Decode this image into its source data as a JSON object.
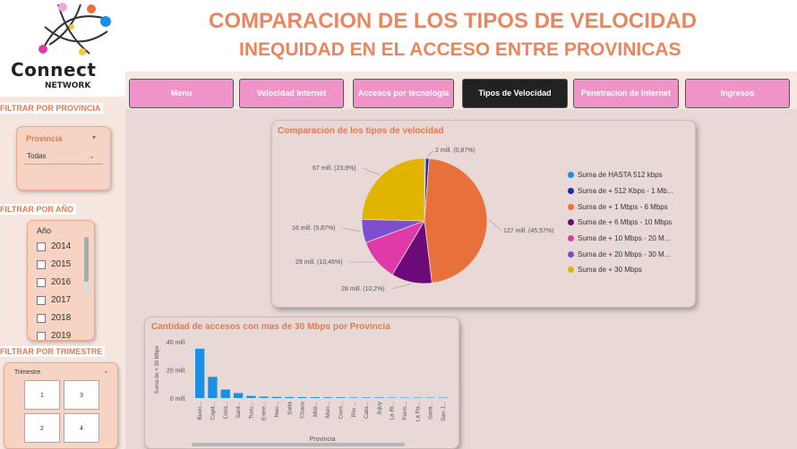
{
  "header": {
    "title_line1": "COMPARACION DE LOS TIPOS DE VELOCIDAD",
    "title_line2": "INEQUIDAD EN EL ACCESO ENTRE PROVINICAS"
  },
  "logo": {
    "word": "Connect",
    "sub": "NETWORK"
  },
  "nav": {
    "items": [
      {
        "label": "Menu"
      },
      {
        "label": "Velocidad Internet"
      },
      {
        "label": "Accesos por tecnología"
      },
      {
        "label": "Tipos de Velocidad"
      },
      {
        "label": "Penetracion de Internet"
      },
      {
        "label": "Ingresos"
      }
    ],
    "active_index": 3
  },
  "filters": {
    "provincia": {
      "section_label": "FILTRAR POR PROVINCIA",
      "title": "Provincia",
      "value": "Todas"
    },
    "anio": {
      "section_label": "FILTRAR POR AÑO",
      "title": "Año",
      "years": [
        "2014",
        "2015",
        "2016",
        "2017",
        "2018",
        "2019"
      ]
    },
    "trimestre": {
      "section_label": "FILTRAR POR TRIMESTRE",
      "title": "Trimestre",
      "options": [
        "1",
        "3",
        "2",
        "4"
      ]
    }
  },
  "pie_card": {
    "title": "Comparacion de los tipos de velocidad",
    "legend": [
      {
        "label": "Suma de HASTA 512 kbps",
        "color": "#1a8fe3"
      },
      {
        "label": "Suma de + 512 Kbps - 1 Mb...",
        "color": "#1c2aa8"
      },
      {
        "label": "Suma de + 1 Mbps - 6 Mbps",
        "color": "#e8703a"
      },
      {
        "label": "Suma de + 6 Mbps - 10 Mbps",
        "color": "#6b0a78"
      },
      {
        "label": "Suma de + 10 Mbps - 20 M...",
        "color": "#e03aa8"
      },
      {
        "label": "Suma de + 20 Mbps - 30 M...",
        "color": "#7b4fd0"
      },
      {
        "label": "Suma de + 30 Mbps",
        "color": "#e0b400"
      }
    ]
  },
  "bar_card": {
    "title": "Cantidad de accesos con mas de 30 Mbps por Provincia"
  },
  "chart_data": [
    {
      "type": "pie",
      "title": "Comparacion de los tipos de velocidad",
      "slices": [
        {
          "name": "Suma de HASTA 512 kbps",
          "value": 0.28,
          "label": "",
          "color": "#1a8fe3"
        },
        {
          "name": "Suma de + 512 Kbps - 1 Mb...",
          "value": 0.87,
          "label": "2 mill. (0,87%)",
          "color": "#1c2aa8"
        },
        {
          "name": "Suma de + 1 Mbps - 6 Mbps",
          "value": 45.57,
          "label": "127 mill. (45,57%)",
          "color": "#e8703a"
        },
        {
          "name": "Suma de + 6 Mbps - 10 Mbps",
          "value": 10.2,
          "label": "28 mill. (10,2%)",
          "color": "#6b0a78"
        },
        {
          "name": "Suma de + 10 Mbps - 20 M...",
          "value": 10.46,
          "label": "29 mill. (10,46%)",
          "color": "#e03aa8"
        },
        {
          "name": "Suma de + 20 Mbps - 30 M...",
          "value": 5.87,
          "label": "16 mill. (5,87%)",
          "color": "#7b4fd0"
        },
        {
          "name": "Suma de + 30 Mbps",
          "value": 23.9,
          "label": "67 mill. (23,9%)",
          "color": "#e0b400"
        }
      ],
      "legend_position": "right"
    },
    {
      "type": "bar",
      "title": "Cantidad de accesos con mas de 30 Mbps por Provincia",
      "xlabel": "Provincia",
      "ylabel": "Suma de + 30 Mbps",
      "ylim": [
        0,
        40
      ],
      "ytick_labels": [
        "40 mill.",
        "20 mill.",
        "0 mill."
      ],
      "yticks": [
        40,
        20,
        0
      ],
      "categories": [
        "Buen...",
        "Capit...",
        "Córd...",
        "Sant...",
        "Tucu...",
        "Entre...",
        "Neu...",
        "Salta",
        "Chaco",
        "Misi...",
        "Men...",
        "Corri...",
        "Río ...",
        "Cata...",
        "Jujuy",
        "La Ri...",
        "Form...",
        "La Pa...",
        "Santi...",
        "San J..."
      ],
      "values": [
        35,
        15,
        6,
        3.5,
        1.5,
        1,
        0.8,
        0.7,
        0.6,
        0.6,
        0.5,
        0.5,
        0.4,
        0.4,
        0.4,
        0.3,
        0.3,
        0.3,
        0.3,
        0.3
      ],
      "color": "#1a8fe3",
      "grid": false
    }
  ]
}
